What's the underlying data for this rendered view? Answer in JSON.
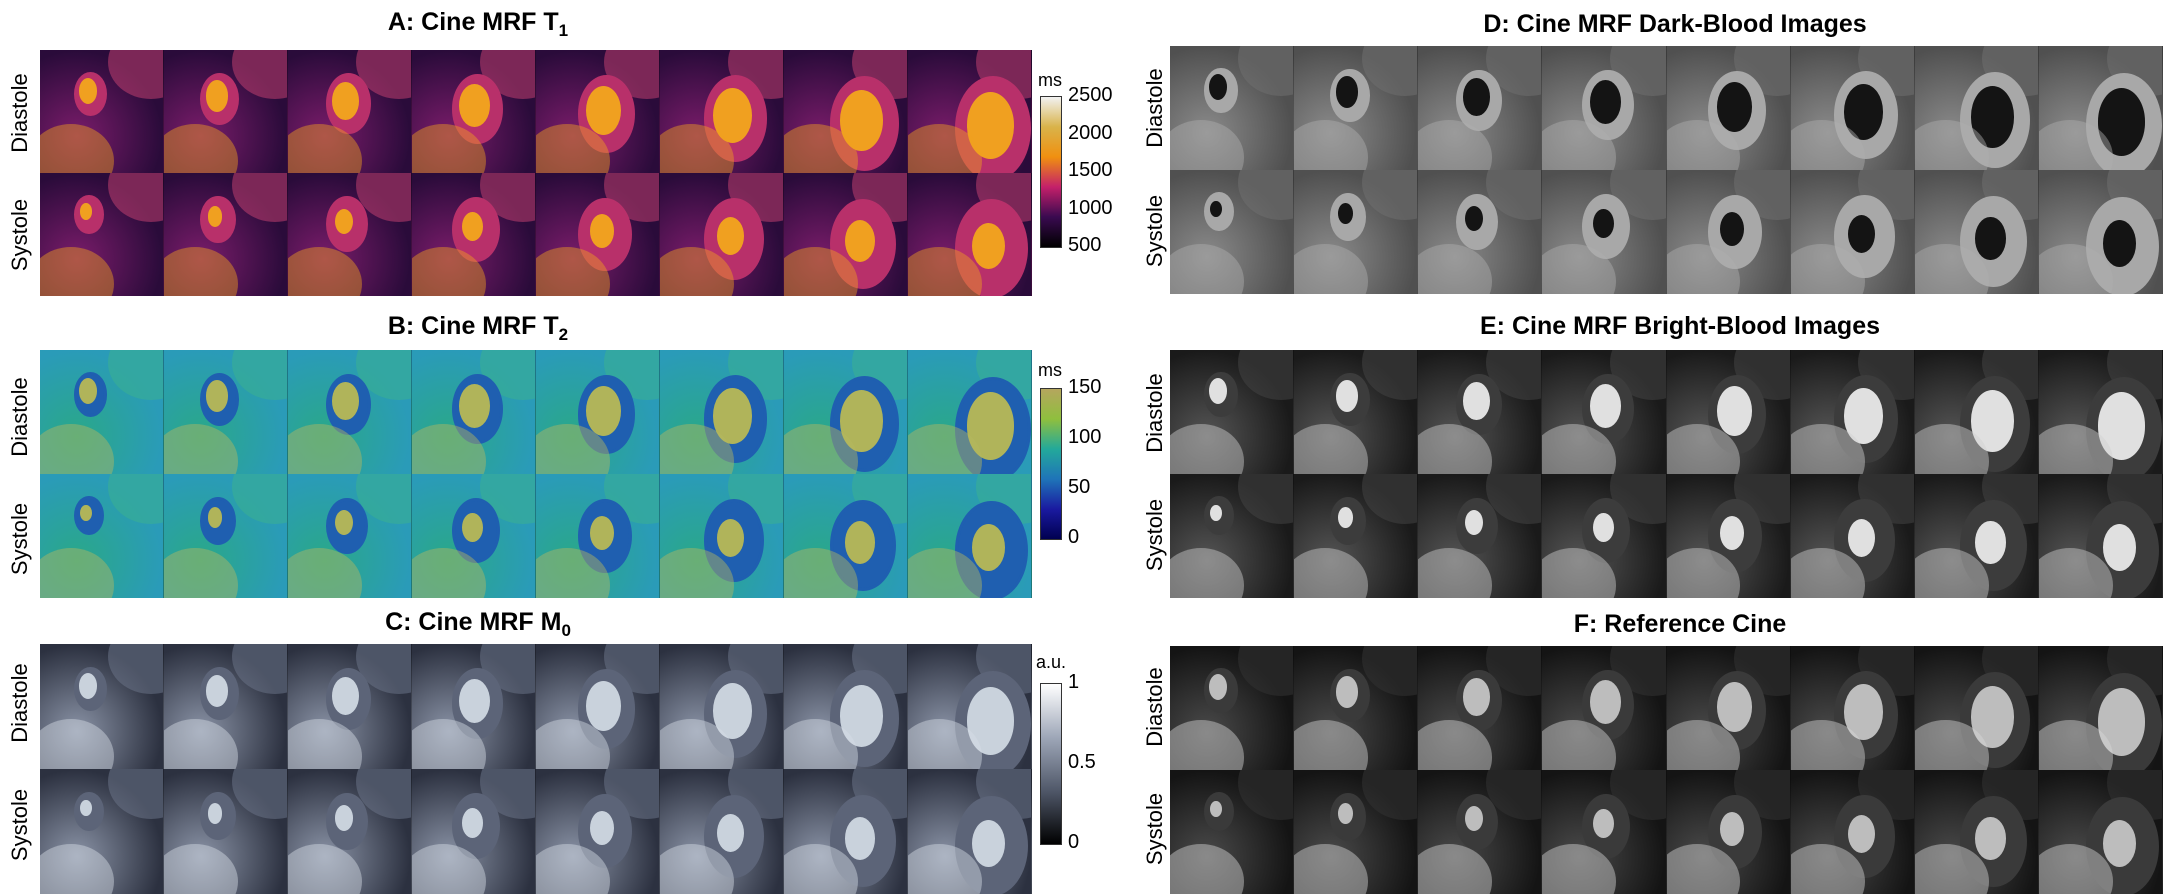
{
  "row_labels": [
    "Diastole",
    "Systole"
  ],
  "panels": [
    {
      "id": "A",
      "title": "A: Cine MRF T",
      "sub": "1",
      "colormap": "t1",
      "colorbar": {
        "unit": "ms",
        "ticks": [
          "2500",
          "2000",
          "1500",
          "1000",
          "500"
        ],
        "colors": [
          "#f2f2f2",
          "#d9b34a",
          "#f09010",
          "#c4206a",
          "#3a0a50",
          "#000000"
        ]
      }
    },
    {
      "id": "B",
      "title": "B: Cine MRF T",
      "sub": "2",
      "colormap": "t2",
      "colorbar": {
        "unit": "ms",
        "ticks": [
          "150",
          "100",
          "50",
          "0"
        ],
        "colors": [
          "#b5a65e",
          "#8fbf3e",
          "#23a99a",
          "#1f74b8",
          "#1a1aa0",
          "#000050"
        ]
      }
    },
    {
      "id": "C",
      "title": "C: Cine MRF M",
      "sub": "0",
      "colormap": "m0",
      "colorbar": {
        "unit": "a.u.",
        "ticks": [
          "1",
          "0.5",
          "0"
        ],
        "colors": [
          "#ffffff",
          "#9ea7b8",
          "#505869",
          "#000000"
        ]
      }
    },
    {
      "id": "D",
      "title": "D: Cine MRF Dark-Blood Images",
      "sub": "",
      "colormap": "dark"
    },
    {
      "id": "E",
      "title": "E: Cine MRF Bright-Blood Images",
      "sub": "",
      "colormap": "bright"
    },
    {
      "id": "F",
      "title": "F: Reference Cine",
      "sub": "",
      "colormap": "ref"
    }
  ]
}
